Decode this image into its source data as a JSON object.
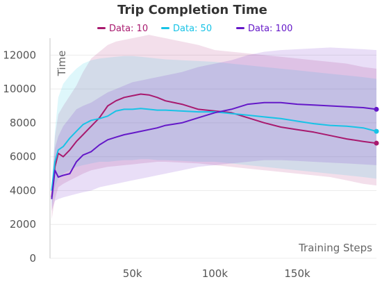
{
  "chart_data": {
    "type": "line",
    "title": "Trip Completion Time",
    "xlabel": "Training Steps",
    "ylabel": "Time",
    "xlim": [
      0,
      198000
    ],
    "ylim": [
      0,
      13000
    ],
    "x_ticks": [
      {
        "value": 50000,
        "label": "50k"
      },
      {
        "value": 100000,
        "label": "100k"
      },
      {
        "value": 150000,
        "label": "150k"
      }
    ],
    "y_ticks": [
      {
        "value": 0,
        "label": "0"
      },
      {
        "value": 2000,
        "label": "2000"
      },
      {
        "value": 4000,
        "label": "4000"
      },
      {
        "value": 6000,
        "label": "6000"
      },
      {
        "value": 8000,
        "label": "8000"
      },
      {
        "value": 10000,
        "label": "10000"
      },
      {
        "value": 12000,
        "label": "12000"
      }
    ],
    "grid": {
      "x": false,
      "y": true
    },
    "legend": "top-center",
    "series": [
      {
        "name": "Data: 10",
        "color": "#a8196e",
        "x": [
          1000,
          3000,
          5000,
          8000,
          12000,
          16000,
          20000,
          25000,
          30000,
          35000,
          40000,
          45000,
          50000,
          55000,
          60000,
          65000,
          70000,
          80000,
          90000,
          100000,
          110000,
          120000,
          130000,
          140000,
          150000,
          160000,
          170000,
          180000,
          190000,
          198000
        ],
        "y": [
          3600,
          5400,
          6200,
          6000,
          6400,
          6900,
          7300,
          7800,
          8300,
          9000,
          9300,
          9500,
          9600,
          9700,
          9650,
          9500,
          9300,
          9100,
          8800,
          8700,
          8600,
          8300,
          8000,
          7750,
          7600,
          7450,
          7250,
          7050,
          6900,
          6800
        ],
        "lower": [
          2300,
          3500,
          4200,
          4400,
          4600,
          4800,
          5000,
          5200,
          5300,
          5400,
          5450,
          5500,
          5550,
          5600,
          5650,
          5700,
          5700,
          5650,
          5600,
          5500,
          5400,
          5300,
          5200,
          5100,
          5000,
          4900,
          4800,
          4600,
          4400,
          4300
        ],
        "upper": [
          4000,
          7200,
          8500,
          9000,
          9600,
          10200,
          11000,
          11800,
          12200,
          12600,
          12800,
          12900,
          13000,
          13100,
          13200,
          13100,
          13000,
          12800,
          12600,
          12300,
          12200,
          12100,
          12000,
          11900,
          11800,
          11700,
          11600,
          11500,
          11300,
          11200
        ]
      },
      {
        "name": "Data: 50",
        "color": "#17c3e6",
        "x": [
          1000,
          3000,
          5000,
          8000,
          12000,
          16000,
          20000,
          25000,
          30000,
          35000,
          40000,
          45000,
          50000,
          55000,
          60000,
          65000,
          70000,
          80000,
          90000,
          100000,
          110000,
          120000,
          130000,
          140000,
          150000,
          160000,
          170000,
          180000,
          190000,
          198000
        ],
        "y": [
          4000,
          5700,
          6400,
          6600,
          7100,
          7500,
          7900,
          8150,
          8250,
          8400,
          8700,
          8800,
          8800,
          8850,
          8800,
          8750,
          8750,
          8700,
          8650,
          8650,
          8550,
          8450,
          8350,
          8250,
          8100,
          7950,
          7850,
          7800,
          7700,
          7500
        ],
        "lower": [
          3000,
          4200,
          4700,
          5000,
          5200,
          5400,
          5500,
          5600,
          5700,
          5700,
          5750,
          5800,
          5800,
          5850,
          5850,
          5800,
          5800,
          5750,
          5700,
          5700,
          5600,
          5500,
          5400,
          5300,
          5200,
          5100,
          5000,
          4900,
          4800,
          4700
        ],
        "upper": [
          4200,
          7500,
          9500,
          10300,
          10800,
          11200,
          11500,
          11700,
          11800,
          11850,
          11900,
          11950,
          11950,
          11900,
          11850,
          11800,
          11750,
          11700,
          11650,
          11600,
          11500,
          11400,
          11300,
          11200,
          11100,
          11000,
          10900,
          10800,
          10700,
          10600
        ]
      },
      {
        "name": "Data: 100",
        "color": "#6418c8",
        "x": [
          1000,
          3000,
          5000,
          8000,
          12000,
          16000,
          20000,
          25000,
          30000,
          35000,
          40000,
          45000,
          50000,
          55000,
          60000,
          65000,
          70000,
          80000,
          90000,
          100000,
          110000,
          120000,
          130000,
          140000,
          150000,
          160000,
          170000,
          180000,
          190000,
          198000
        ],
        "y": [
          3500,
          5200,
          4800,
          4900,
          5000,
          5700,
          6100,
          6300,
          6700,
          7000,
          7150,
          7300,
          7400,
          7500,
          7600,
          7700,
          7850,
          8000,
          8300,
          8600,
          8800,
          9100,
          9200,
          9200,
          9100,
          9050,
          9000,
          8950,
          8900,
          8800
        ],
        "lower": [
          2800,
          3400,
          3500,
          3600,
          3700,
          3800,
          3900,
          4000,
          4200,
          4300,
          4400,
          4500,
          4600,
          4700,
          4800,
          4900,
          5000,
          5200,
          5400,
          5500,
          5600,
          5700,
          5800,
          5800,
          5750,
          5700,
          5650,
          5600,
          5550,
          5500
        ],
        "upper": [
          4200,
          6500,
          7200,
          7800,
          8300,
          8800,
          9000,
          9200,
          9500,
          9800,
          10000,
          10200,
          10400,
          10500,
          10600,
          10700,
          10800,
          11000,
          11300,
          11500,
          11700,
          12000,
          12200,
          12300,
          12350,
          12400,
          12450,
          12400,
          12350,
          12300
        ]
      }
    ]
  }
}
